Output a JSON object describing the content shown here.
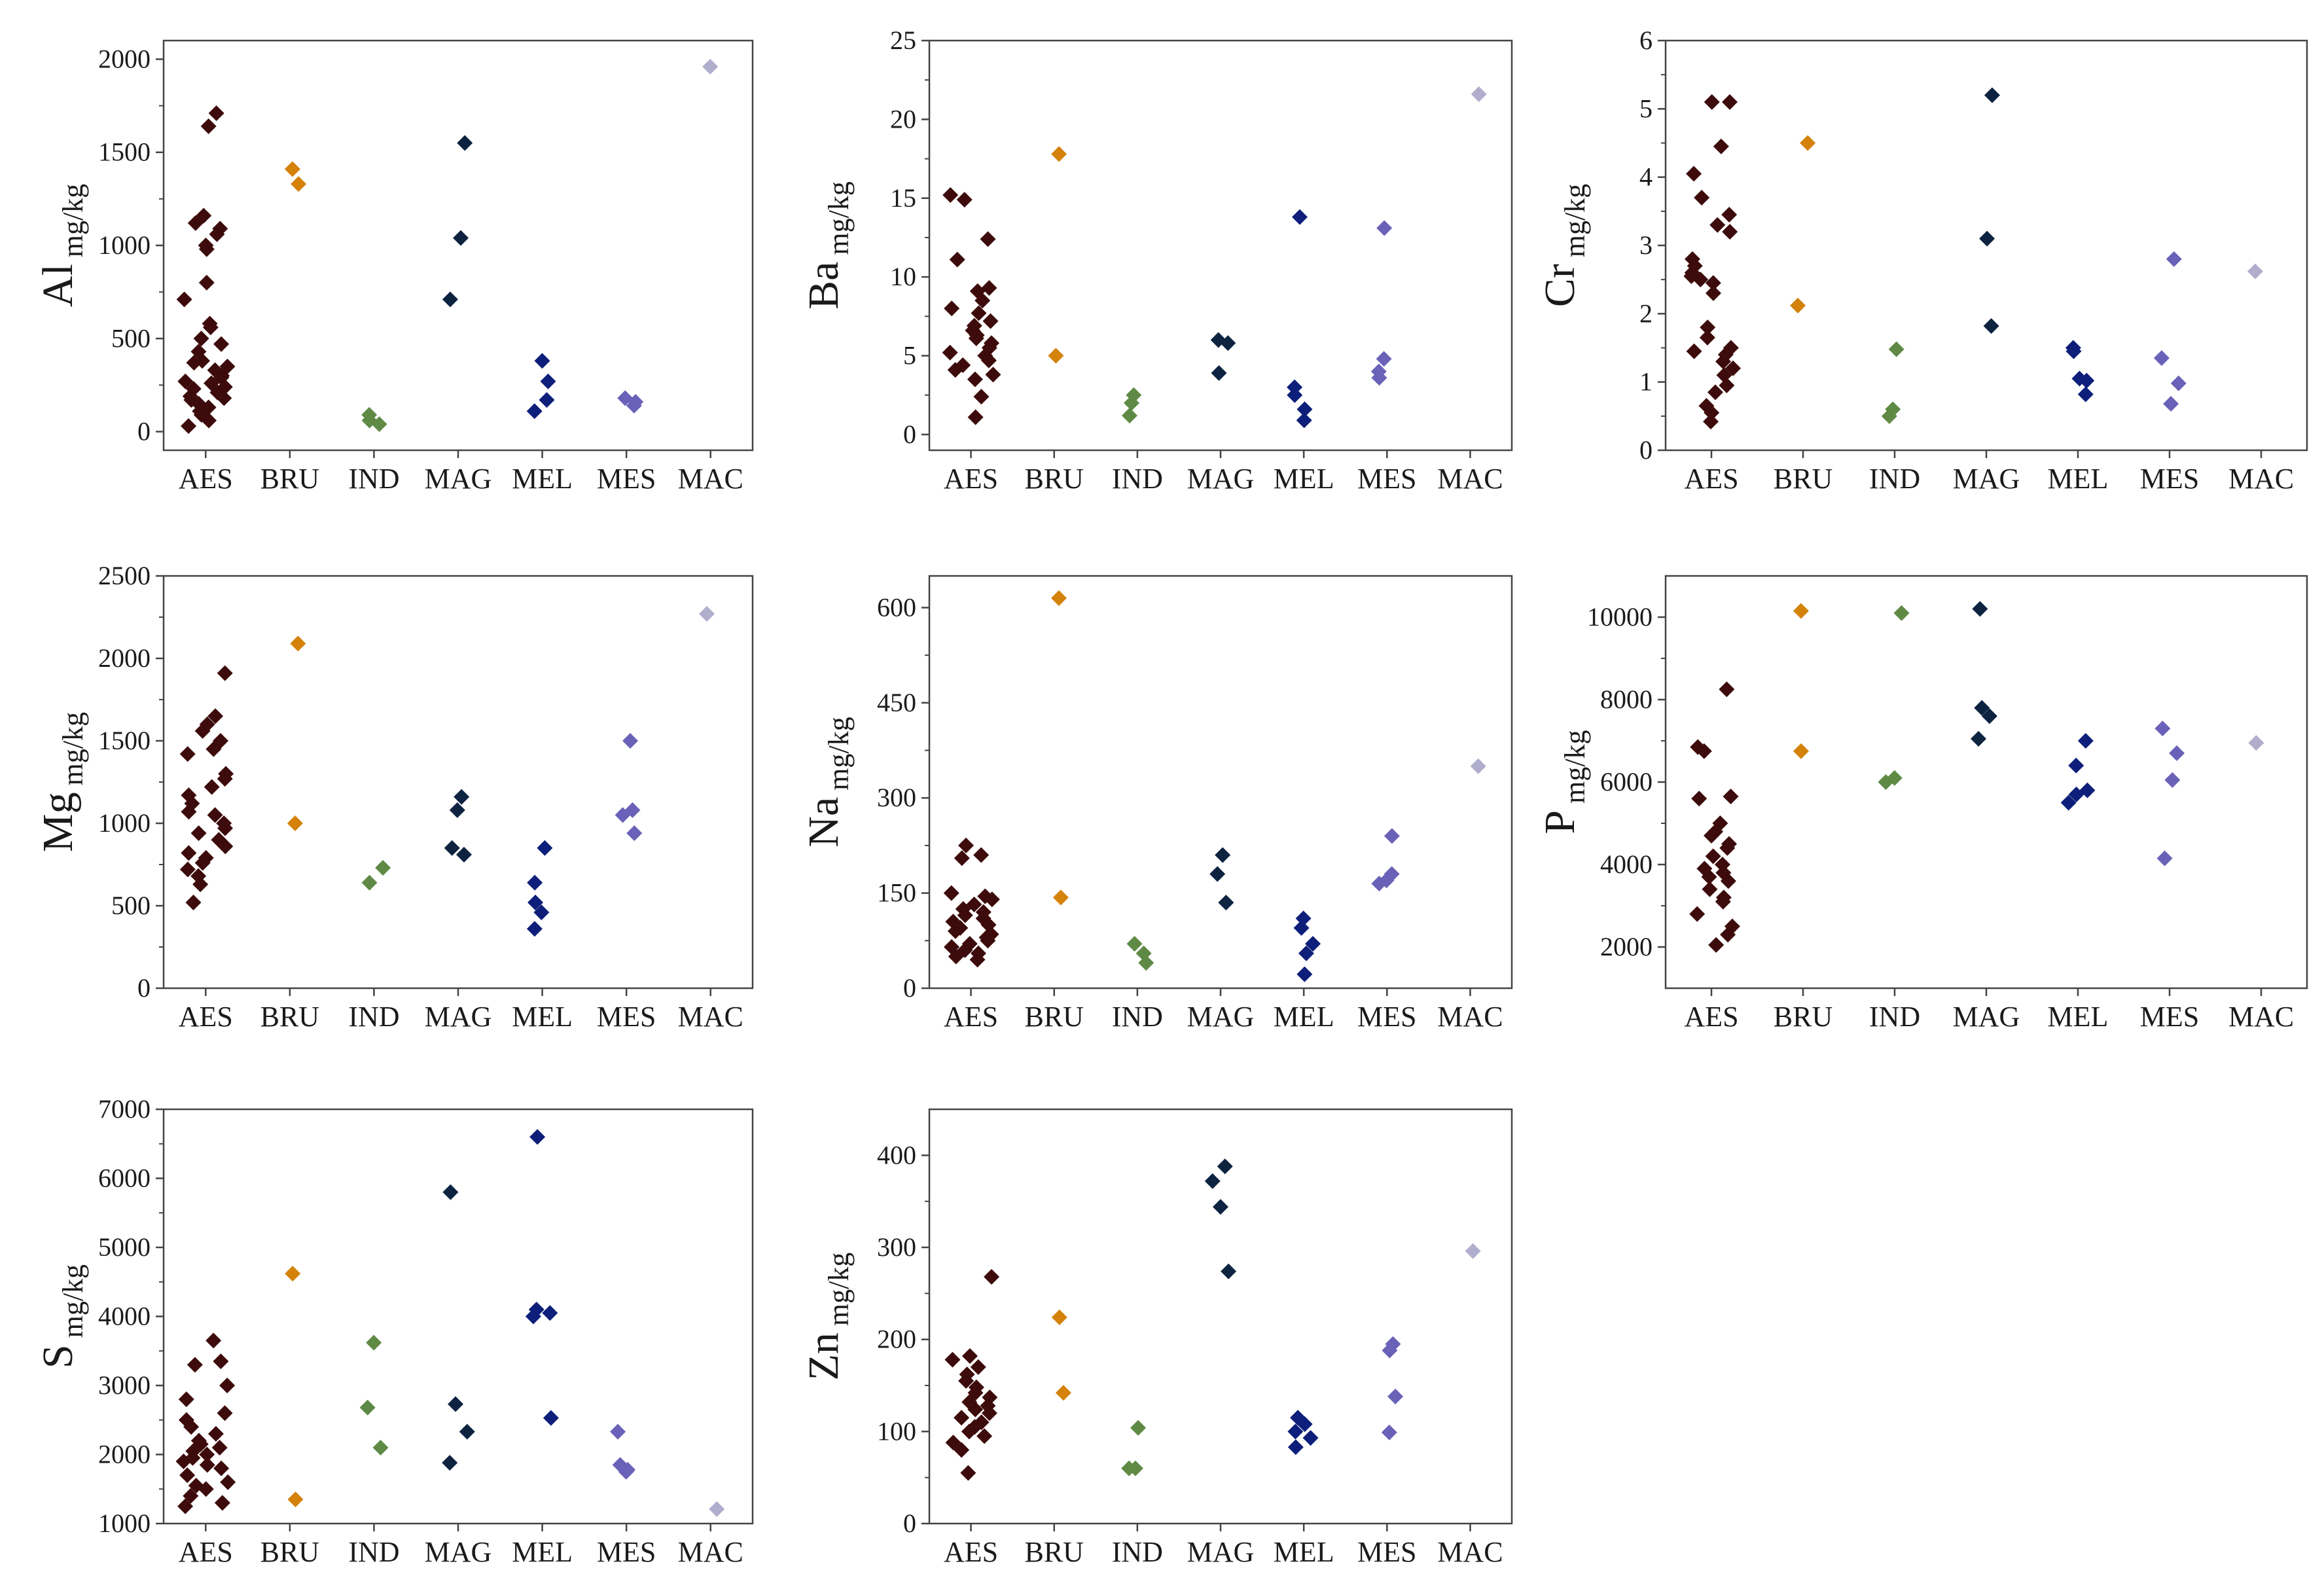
{
  "colors": {
    "AES": "#3d0b0b",
    "BRU": "#d4820a",
    "IND": "#5f8a45",
    "MAG": "#0d2340",
    "MEL": "#0d1f7a",
    "MES": "#6a62b8",
    "MAC": "#b1aecd"
  },
  "chart_data": [
    {
      "type": "scatter",
      "element": "Al",
      "unit": "mg/kg",
      "categories": [
        "AES",
        "BRU",
        "IND",
        "MAG",
        "MEL",
        "MES",
        "MAC"
      ],
      "ylim": [
        -100,
        2100
      ],
      "yticks": [
        0,
        500,
        1000,
        1500,
        2000
      ],
      "series": [
        {
          "name": "AES",
          "values": [
            1710,
            1640,
            1160,
            1120,
            1090,
            1060,
            1000,
            980,
            800,
            710,
            580,
            560,
            500,
            470,
            430,
            380,
            370,
            350,
            330,
            300,
            290,
            270,
            260,
            240,
            230,
            210,
            190,
            180,
            170,
            150,
            130,
            110,
            90,
            60,
            30
          ]
        },
        {
          "name": "BRU",
          "values": [
            1410,
            1330
          ]
        },
        {
          "name": "IND",
          "values": [
            90,
            60,
            40
          ]
        },
        {
          "name": "MAG",
          "values": [
            1550,
            1040,
            710
          ]
        },
        {
          "name": "MEL",
          "values": [
            380,
            270,
            170,
            110
          ]
        },
        {
          "name": "MES",
          "values": [
            180,
            160,
            140
          ]
        },
        {
          "name": "MAC",
          "values": [
            1960
          ]
        }
      ]
    },
    {
      "type": "scatter",
      "element": "Ba",
      "unit": "mg/kg",
      "categories": [
        "AES",
        "BRU",
        "IND",
        "MAG",
        "MEL",
        "MES",
        "MAC"
      ],
      "ylim": [
        -1,
        25
      ],
      "yticks": [
        0,
        5,
        10,
        15,
        20,
        25
      ],
      "series": [
        {
          "name": "AES",
          "values": [
            15.2,
            14.9,
            12.4,
            11.1,
            9.3,
            9.1,
            8.5,
            8.0,
            7.7,
            7.2,
            6.9,
            6.6,
            6.3,
            6.1,
            5.8,
            5.5,
            5.2,
            5.0,
            4.7,
            4.4,
            4.1,
            3.8,
            3.5,
            2.4,
            1.1
          ]
        },
        {
          "name": "BRU",
          "values": [
            17.8,
            5.0
          ]
        },
        {
          "name": "IND",
          "values": [
            2.5,
            2.0,
            1.2
          ]
        },
        {
          "name": "MAG",
          "values": [
            6.0,
            5.8,
            3.9
          ]
        },
        {
          "name": "MEL",
          "values": [
            13.8,
            3.0,
            2.5,
            1.6,
            0.9
          ]
        },
        {
          "name": "MES",
          "values": [
            13.1,
            4.8,
            4.0,
            3.6
          ]
        },
        {
          "name": "MAC",
          "values": [
            21.6
          ]
        }
      ]
    },
    {
      "type": "scatter",
      "element": "Cr",
      "unit": "mg/kg",
      "categories": [
        "AES",
        "BRU",
        "IND",
        "MAG",
        "MEL",
        "MES",
        "MAC"
      ],
      "ylim": [
        0,
        6
      ],
      "yticks": [
        0,
        1,
        2,
        3,
        4,
        5,
        6
      ],
      "series": [
        {
          "name": "AES",
          "values": [
            5.1,
            5.1,
            4.45,
            4.05,
            3.7,
            3.45,
            3.3,
            3.2,
            2.8,
            2.7,
            2.6,
            2.55,
            2.5,
            2.45,
            2.3,
            1.8,
            1.65,
            1.5,
            1.45,
            1.4,
            1.3,
            1.2,
            1.1,
            0.95,
            0.85,
            0.65,
            0.55,
            0.42
          ]
        },
        {
          "name": "BRU",
          "values": [
            4.5,
            2.12
          ]
        },
        {
          "name": "IND",
          "values": [
            1.48,
            0.6,
            0.5
          ]
        },
        {
          "name": "MAG",
          "values": [
            5.2,
            3.1,
            1.82
          ]
        },
        {
          "name": "MEL",
          "values": [
            1.5,
            1.45,
            1.05,
            1.02,
            0.82
          ]
        },
        {
          "name": "MES",
          "values": [
            2.8,
            1.35,
            0.98,
            0.68
          ]
        },
        {
          "name": "MAC",
          "values": [
            2.62
          ]
        }
      ]
    },
    {
      "type": "scatter",
      "element": "Mg",
      "unit": "mg/kg",
      "categories": [
        "AES",
        "BRU",
        "IND",
        "MAG",
        "MEL",
        "MES",
        "MAC"
      ],
      "ylim": [
        0,
        2500
      ],
      "yticks": [
        0,
        500,
        1000,
        1500,
        2000,
        2500
      ],
      "series": [
        {
          "name": "AES",
          "values": [
            1910,
            1650,
            1600,
            1560,
            1500,
            1450,
            1420,
            1300,
            1270,
            1220,
            1170,
            1120,
            1070,
            1050,
            1000,
            970,
            940,
            900,
            860,
            820,
            790,
            760,
            720,
            680,
            630,
            520
          ]
        },
        {
          "name": "BRU",
          "values": [
            2090,
            1000
          ]
        },
        {
          "name": "IND",
          "values": [
            730,
            640
          ]
        },
        {
          "name": "MAG",
          "values": [
            1160,
            1080,
            850,
            810
          ]
        },
        {
          "name": "MEL",
          "values": [
            850,
            640,
            520,
            460,
            360
          ]
        },
        {
          "name": "MES",
          "values": [
            1500,
            1080,
            1050,
            940
          ]
        },
        {
          "name": "MAC",
          "values": [
            2270
          ]
        }
      ]
    },
    {
      "type": "scatter",
      "element": "Na",
      "unit": "mg/kg",
      "categories": [
        "AES",
        "BRU",
        "IND",
        "MAG",
        "MEL",
        "MES",
        "MAC"
      ],
      "ylim": [
        0,
        650
      ],
      "yticks": [
        0,
        150,
        300,
        450,
        600
      ],
      "series": [
        {
          "name": "AES",
          "values": [
            225,
            210,
            205,
            150,
            145,
            140,
            132,
            125,
            120,
            115,
            110,
            105,
            100,
            95,
            90,
            85,
            80,
            75,
            70,
            65,
            60,
            55,
            50,
            45
          ]
        },
        {
          "name": "BRU",
          "values": [
            615,
            143
          ]
        },
        {
          "name": "IND",
          "values": [
            70,
            55,
            40
          ]
        },
        {
          "name": "MAG",
          "values": [
            210,
            180,
            135
          ]
        },
        {
          "name": "MEL",
          "values": [
            110,
            95,
            70,
            55,
            22
          ]
        },
        {
          "name": "MES",
          "values": [
            240,
            180,
            170,
            165
          ]
        },
        {
          "name": "MAC",
          "values": [
            350
          ]
        }
      ]
    },
    {
      "type": "scatter",
      "element": "P",
      "unit": "mg/kg",
      "categories": [
        "AES",
        "BRU",
        "IND",
        "MAG",
        "MEL",
        "MES",
        "MAC"
      ],
      "ylim": [
        1000,
        11000
      ],
      "yticks": [
        2000,
        4000,
        6000,
        8000,
        10000
      ],
      "series": [
        {
          "name": "AES",
          "values": [
            8250,
            6850,
            6750,
            5650,
            5600,
            5000,
            4800,
            4700,
            4500,
            4400,
            4200,
            4000,
            3900,
            3800,
            3700,
            3600,
            3400,
            3200,
            3100,
            2800,
            2500,
            2300,
            2050
          ]
        },
        {
          "name": "BRU",
          "values": [
            10150,
            6750
          ]
        },
        {
          "name": "IND",
          "values": [
            10100,
            6100,
            6000
          ]
        },
        {
          "name": "MAG",
          "values": [
            10200,
            7800,
            7600,
            7050
          ]
        },
        {
          "name": "MEL",
          "values": [
            7000,
            6400,
            5800,
            5700,
            5500
          ]
        },
        {
          "name": "MES",
          "values": [
            7300,
            6700,
            6050,
            4150
          ]
        },
        {
          "name": "MAC",
          "values": [
            6950
          ]
        }
      ]
    },
    {
      "type": "scatter",
      "element": "S",
      "unit": "mg/kg",
      "categories": [
        "AES",
        "BRU",
        "IND",
        "MAG",
        "MEL",
        "MES",
        "MAC"
      ],
      "ylim": [
        1000,
        7000
      ],
      "yticks": [
        1000,
        2000,
        3000,
        4000,
        5000,
        6000,
        7000
      ],
      "series": [
        {
          "name": "AES",
          "values": [
            3650,
            3350,
            3300,
            3000,
            2800,
            2600,
            2500,
            2400,
            2300,
            2200,
            2150,
            2100,
            2050,
            2000,
            1950,
            1900,
            1850,
            1800,
            1700,
            1600,
            1550,
            1500,
            1400,
            1300,
            1250
          ]
        },
        {
          "name": "BRU",
          "values": [
            4620,
            1350
          ]
        },
        {
          "name": "IND",
          "values": [
            3620,
            2680,
            2100
          ]
        },
        {
          "name": "MAG",
          "values": [
            5800,
            2730,
            2330,
            1880
          ]
        },
        {
          "name": "MEL",
          "values": [
            6600,
            4100,
            4050,
            4000,
            2530
          ]
        },
        {
          "name": "MES",
          "values": [
            2330,
            1850,
            1780,
            1750
          ]
        },
        {
          "name": "MAC",
          "values": [
            1210
          ]
        }
      ]
    },
    {
      "type": "scatter",
      "element": "Zn",
      "unit": "mg/kg",
      "categories": [
        "AES",
        "BRU",
        "IND",
        "MAG",
        "MEL",
        "MES",
        "MAC"
      ],
      "ylim": [
        0,
        450
      ],
      "yticks": [
        0,
        100,
        200,
        300,
        400
      ],
      "series": [
        {
          "name": "AES",
          "values": [
            268,
            182,
            178,
            170,
            162,
            155,
            148,
            142,
            137,
            132,
            128,
            124,
            120,
            115,
            110,
            105,
            100,
            95,
            88,
            80,
            55
          ]
        },
        {
          "name": "BRU",
          "values": [
            224,
            142
          ]
        },
        {
          "name": "IND",
          "values": [
            104,
            60,
            60
          ]
        },
        {
          "name": "MAG",
          "values": [
            388,
            372,
            344,
            274
          ]
        },
        {
          "name": "MEL",
          "values": [
            115,
            108,
            100,
            93,
            83
          ]
        },
        {
          "name": "MES",
          "values": [
            195,
            188,
            138,
            99
          ]
        },
        {
          "name": "MAC",
          "values": [
            296
          ]
        }
      ]
    }
  ]
}
